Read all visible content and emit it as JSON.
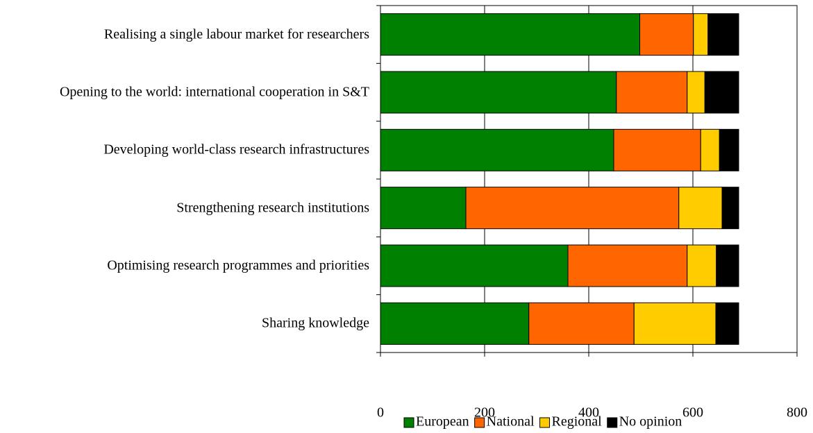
{
  "chart_data": {
    "type": "stacked-bar-horizontal",
    "categories": [
      "Realising a single labour market for researchers",
      "Opening to the world: international cooperation in S&T",
      "Developing world-class research infrastructures",
      "Strengthening research institutions",
      "Optimising research programmes and priorities",
      "Sharing knowledge"
    ],
    "series": [
      {
        "name": "European",
        "color": "#008000",
        "values": [
          498,
          453,
          448,
          164,
          360,
          285
        ]
      },
      {
        "name": "National",
        "color": "#ff6600",
        "values": [
          103,
          136,
          167,
          409,
          229,
          202
        ]
      },
      {
        "name": "Regional",
        "color": "#ffcc00",
        "values": [
          28,
          34,
          36,
          83,
          56,
          157
        ]
      },
      {
        "name": "No opinion",
        "color": "#000000",
        "values": [
          59,
          65,
          37,
          32,
          43,
          44
        ]
      }
    ],
    "xlim": [
      0,
      800
    ],
    "xticks": [
      0,
      200,
      400,
      600,
      800
    ],
    "grid": true,
    "legend": "bottom"
  }
}
